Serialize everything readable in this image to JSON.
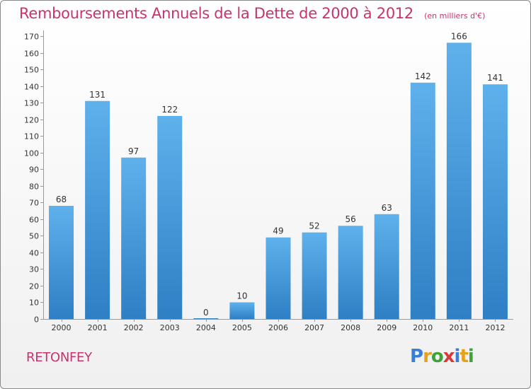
{
  "title": "Remboursements Annuels de la Dette de 2000 à 2012",
  "subtitle": "(en milliers d'€)",
  "town": "RETONFEY",
  "logo": {
    "letters": [
      "P",
      "r",
      "o",
      "x",
      "i",
      "t",
      "i"
    ],
    "colors": [
      "#3a7fd6",
      "#e8a21a",
      "#3fa23a",
      "#d63a3a",
      "#3a7fd6",
      "#e8a21a",
      "#3fa23a"
    ]
  },
  "colors": {
    "bar_light": "#5fb1ec",
    "bar_dark": "#2e7fc4",
    "title": "#c8326e"
  },
  "chart_data": {
    "type": "bar",
    "title": "Remboursements Annuels de la Dette de 2000 à 2012",
    "xlabel": "",
    "ylabel": "(en milliers d'€)",
    "categories": [
      "2000",
      "2001",
      "2002",
      "2003",
      "2004",
      "2005",
      "2006",
      "2007",
      "2008",
      "2009",
      "2010",
      "2011",
      "2012"
    ],
    "values": [
      68,
      131,
      97,
      122,
      0,
      10,
      49,
      52,
      56,
      63,
      142,
      166,
      141
    ],
    "ylim": [
      0,
      170
    ],
    "yticks": [
      0,
      10,
      20,
      30,
      40,
      50,
      60,
      70,
      80,
      90,
      100,
      110,
      120,
      130,
      140,
      150,
      160,
      170
    ],
    "grid": false
  }
}
